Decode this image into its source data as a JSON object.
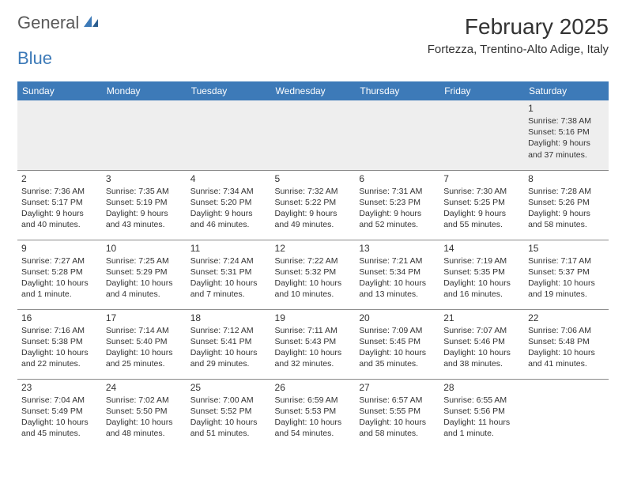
{
  "brand": {
    "part1": "General",
    "part2": "Blue"
  },
  "header": {
    "month_title": "February 2025",
    "location": "Fortezza, Trentino-Alto Adige, Italy"
  },
  "colors": {
    "header_bg": "#3d7ab8",
    "header_text": "#ffffff",
    "firstrow_bg": "#eeeeee",
    "text": "#333333",
    "rule": "#8a8a8a",
    "brand_gray": "#5a5a5a",
    "brand_blue": "#3d7ab8"
  },
  "day_labels": [
    "Sunday",
    "Monday",
    "Tuesday",
    "Wednesday",
    "Thursday",
    "Friday",
    "Saturday"
  ],
  "weeks": [
    [
      null,
      null,
      null,
      null,
      null,
      null,
      {
        "n": "1",
        "sr": "7:38 AM",
        "ss": "5:16 PM",
        "dl": "9 hours and 37 minutes."
      }
    ],
    [
      {
        "n": "2",
        "sr": "7:36 AM",
        "ss": "5:17 PM",
        "dl": "9 hours and 40 minutes."
      },
      {
        "n": "3",
        "sr": "7:35 AM",
        "ss": "5:19 PM",
        "dl": "9 hours and 43 minutes."
      },
      {
        "n": "4",
        "sr": "7:34 AM",
        "ss": "5:20 PM",
        "dl": "9 hours and 46 minutes."
      },
      {
        "n": "5",
        "sr": "7:32 AM",
        "ss": "5:22 PM",
        "dl": "9 hours and 49 minutes."
      },
      {
        "n": "6",
        "sr": "7:31 AM",
        "ss": "5:23 PM",
        "dl": "9 hours and 52 minutes."
      },
      {
        "n": "7",
        "sr": "7:30 AM",
        "ss": "5:25 PM",
        "dl": "9 hours and 55 minutes."
      },
      {
        "n": "8",
        "sr": "7:28 AM",
        "ss": "5:26 PM",
        "dl": "9 hours and 58 minutes."
      }
    ],
    [
      {
        "n": "9",
        "sr": "7:27 AM",
        "ss": "5:28 PM",
        "dl": "10 hours and 1 minute."
      },
      {
        "n": "10",
        "sr": "7:25 AM",
        "ss": "5:29 PM",
        "dl": "10 hours and 4 minutes."
      },
      {
        "n": "11",
        "sr": "7:24 AM",
        "ss": "5:31 PM",
        "dl": "10 hours and 7 minutes."
      },
      {
        "n": "12",
        "sr": "7:22 AM",
        "ss": "5:32 PM",
        "dl": "10 hours and 10 minutes."
      },
      {
        "n": "13",
        "sr": "7:21 AM",
        "ss": "5:34 PM",
        "dl": "10 hours and 13 minutes."
      },
      {
        "n": "14",
        "sr": "7:19 AM",
        "ss": "5:35 PM",
        "dl": "10 hours and 16 minutes."
      },
      {
        "n": "15",
        "sr": "7:17 AM",
        "ss": "5:37 PM",
        "dl": "10 hours and 19 minutes."
      }
    ],
    [
      {
        "n": "16",
        "sr": "7:16 AM",
        "ss": "5:38 PM",
        "dl": "10 hours and 22 minutes."
      },
      {
        "n": "17",
        "sr": "7:14 AM",
        "ss": "5:40 PM",
        "dl": "10 hours and 25 minutes."
      },
      {
        "n": "18",
        "sr": "7:12 AM",
        "ss": "5:41 PM",
        "dl": "10 hours and 29 minutes."
      },
      {
        "n": "19",
        "sr": "7:11 AM",
        "ss": "5:43 PM",
        "dl": "10 hours and 32 minutes."
      },
      {
        "n": "20",
        "sr": "7:09 AM",
        "ss": "5:45 PM",
        "dl": "10 hours and 35 minutes."
      },
      {
        "n": "21",
        "sr": "7:07 AM",
        "ss": "5:46 PM",
        "dl": "10 hours and 38 minutes."
      },
      {
        "n": "22",
        "sr": "7:06 AM",
        "ss": "5:48 PM",
        "dl": "10 hours and 41 minutes."
      }
    ],
    [
      {
        "n": "23",
        "sr": "7:04 AM",
        "ss": "5:49 PM",
        "dl": "10 hours and 45 minutes."
      },
      {
        "n": "24",
        "sr": "7:02 AM",
        "ss": "5:50 PM",
        "dl": "10 hours and 48 minutes."
      },
      {
        "n": "25",
        "sr": "7:00 AM",
        "ss": "5:52 PM",
        "dl": "10 hours and 51 minutes."
      },
      {
        "n": "26",
        "sr": "6:59 AM",
        "ss": "5:53 PM",
        "dl": "10 hours and 54 minutes."
      },
      {
        "n": "27",
        "sr": "6:57 AM",
        "ss": "5:55 PM",
        "dl": "10 hours and 58 minutes."
      },
      {
        "n": "28",
        "sr": "6:55 AM",
        "ss": "5:56 PM",
        "dl": "11 hours and 1 minute."
      },
      null
    ]
  ],
  "labels": {
    "sunrise_prefix": "Sunrise: ",
    "sunset_prefix": "Sunset: ",
    "daylight_prefix": "Daylight: "
  }
}
